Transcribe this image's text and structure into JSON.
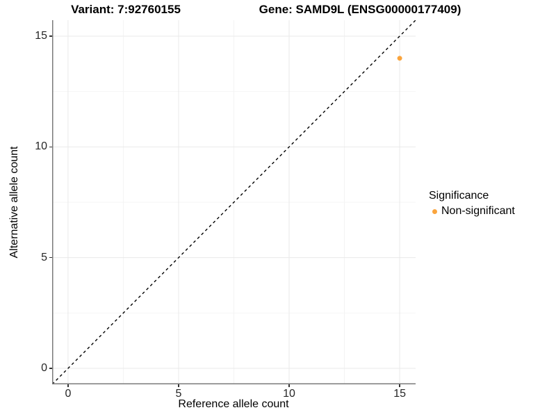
{
  "colors": {
    "background": "#ffffff",
    "grid_major": "#e9e9e9",
    "grid_minor": "#f4f4f4",
    "axis_line": "#7a7a7a",
    "tick_mark": "#333333",
    "tick_label": "#262626",
    "reference_line": "#000000",
    "point": "#faa43c"
  },
  "chart_data": {
    "type": "scatter",
    "titles": {
      "variant": "Variant: 7:92760155",
      "gene": "Gene: SAMD9L (ENSG00000177409)"
    },
    "xlabel": "Reference allele count",
    "ylabel": "Alternative allele count",
    "xlim": [
      -0.72,
      15.72
    ],
    "ylim": [
      -0.72,
      15.72
    ],
    "xticks": [
      0,
      5,
      10,
      15
    ],
    "yticks": [
      0,
      5,
      10,
      15
    ],
    "x_minor_ticks": [
      2.5,
      7.5,
      12.5
    ],
    "y_minor_ticks": [
      2.5,
      7.5,
      12.5
    ],
    "grid": "major and minor, light gray, white panel background",
    "reference_line": {
      "kind": "identity",
      "slope": 1,
      "intercept": 0,
      "style": "dashed",
      "color": "#000000"
    },
    "series": [
      {
        "name": "Non-significant",
        "color": "#faa43c",
        "points": [
          {
            "x": 15,
            "y": 14
          }
        ]
      }
    ],
    "legend": {
      "title": "Significance",
      "position": "right",
      "items": [
        {
          "label": "Non-significant",
          "color": "#faa43c"
        }
      ]
    }
  }
}
